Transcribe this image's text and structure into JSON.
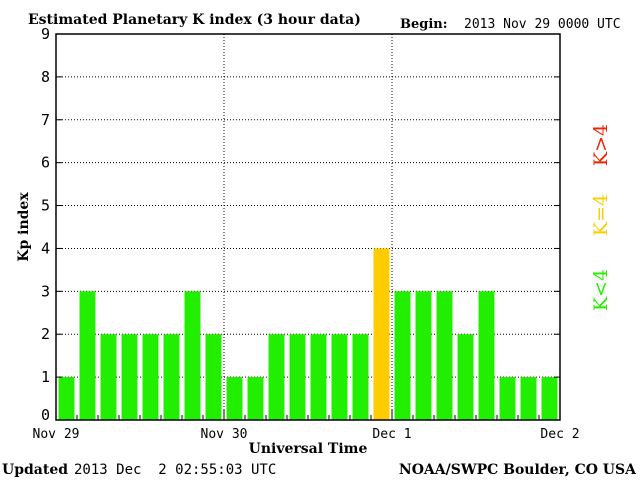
{
  "chart_data": {
    "type": "bar",
    "title": "Estimated Planetary K index (3 hour data)",
    "begin_label": "Begin:",
    "begin_value": "2013 Nov 29 0000 UTC",
    "xlabel": "Universal Time",
    "ylabel": "Kp index",
    "ylim": [
      0,
      9
    ],
    "yticks": [
      "0",
      "1",
      "2",
      "3",
      "4",
      "5",
      "6",
      "7",
      "8",
      "9"
    ],
    "xticks": [
      "Nov 29",
      "Nov 30",
      "Dec 1",
      "Dec 2"
    ],
    "bar_interval_hours": 3,
    "values": [
      1,
      3,
      2,
      2,
      2,
      2,
      3,
      2,
      1,
      1,
      2,
      2,
      2,
      2,
      2,
      4,
      3,
      3,
      3,
      2,
      3,
      1,
      1,
      1
    ],
    "grid": true,
    "legend": [
      {
        "label": "K<4",
        "color": "#22ee00"
      },
      {
        "label": "K=4",
        "color": "#ffcc00"
      },
      {
        "label": "K>4",
        "color": "#ee2200"
      }
    ],
    "legend_placement": "right",
    "colors": {
      "low": "#22ee00",
      "equal": "#ffcc00",
      "high": "#ee2200"
    }
  },
  "footer": {
    "updated_label": "Updated",
    "updated_value": "2013 Dec  2 02:55:03 UTC",
    "source": "NOAA/SWPC Boulder, CO USA"
  }
}
